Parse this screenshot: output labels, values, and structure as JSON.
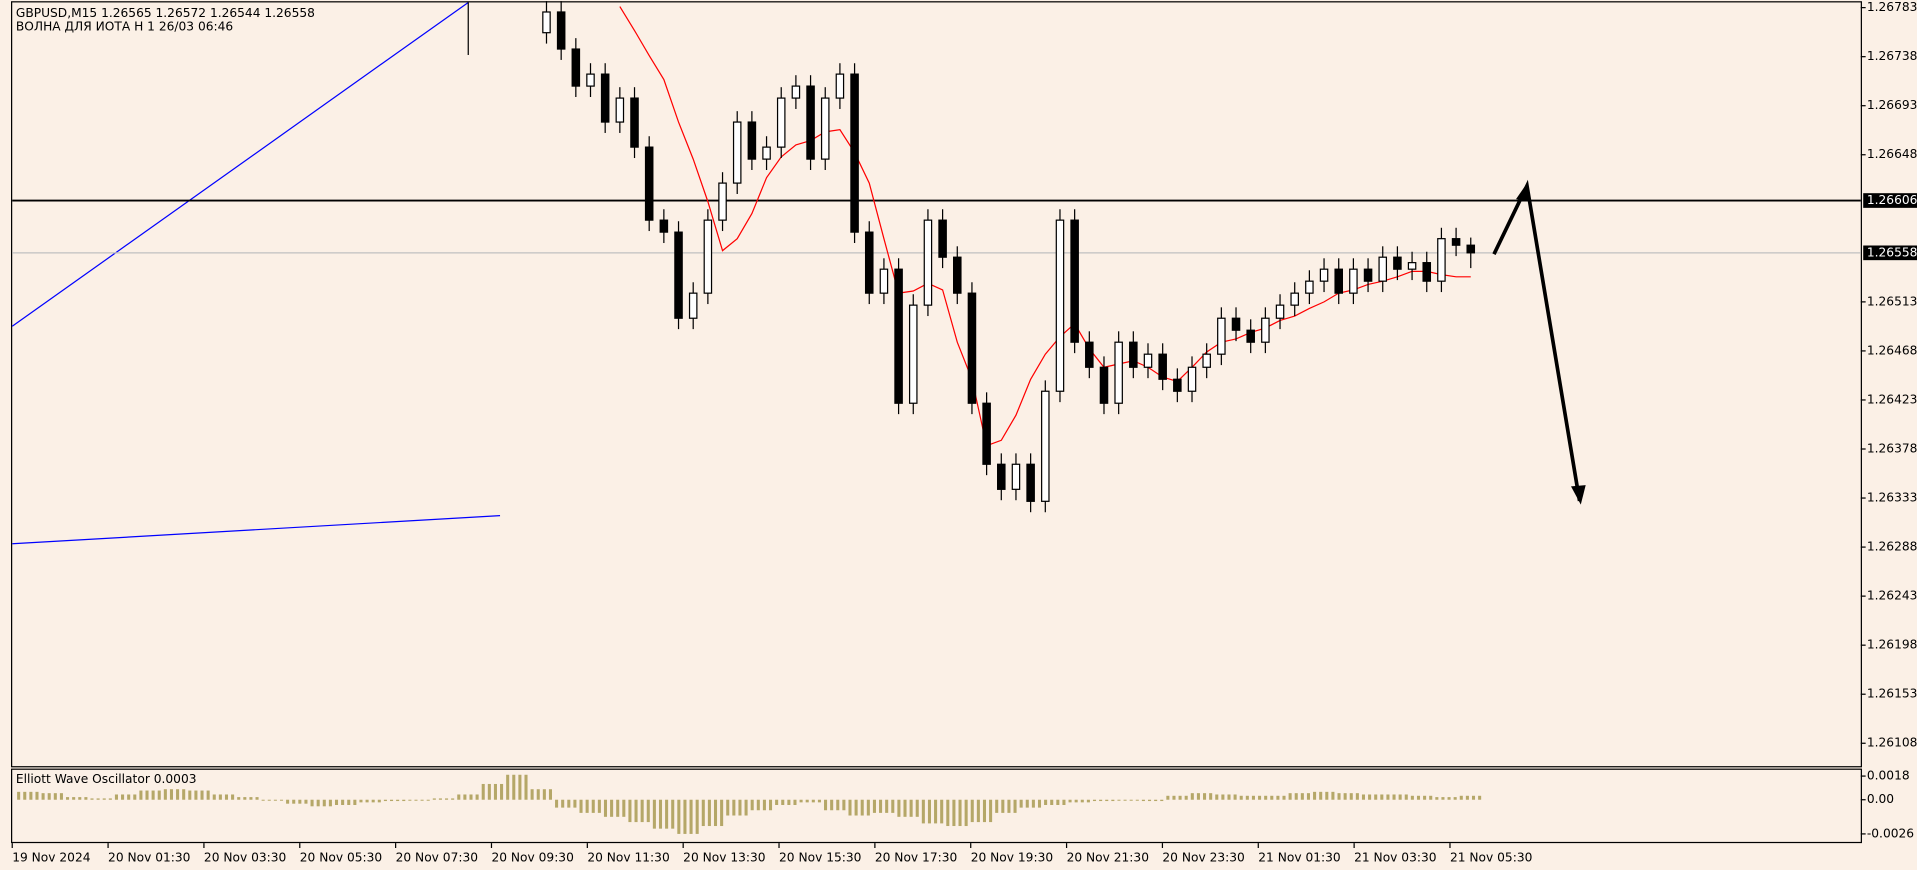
{
  "chart_data": {
    "type": "candlestick",
    "title": "GBPUSD,M15  1.26565 1.26572 1.26544 1.26558",
    "subtitle": "ВОЛНА ДЛЯ ИОТА Н 1 26/03 06:46",
    "ylim": [
      1.26087,
      1.2679
    ],
    "yticks": [
      1.26783,
      1.26738,
      1.26693,
      1.26648,
      1.26513,
      1.26468,
      1.26423,
      1.26378,
      1.26333,
      1.26288,
      1.26243,
      1.26198,
      1.26153,
      1.26108
    ],
    "hline": 1.26606,
    "bid": 1.26558,
    "xticks": [
      "19 Nov 2024",
      "20 Nov 01:30",
      "20 Nov 03:30",
      "20 Nov 05:30",
      "20 Nov 07:30",
      "20 Nov 09:30",
      "20 Nov 11:30",
      "20 Nov 13:30",
      "20 Nov 15:30",
      "20 Nov 17:30",
      "20 Nov 19:30",
      "20 Nov 21:30",
      "20 Nov 23:30",
      "21 Nov 01:30",
      "21 Nov 03:30",
      "21 Nov 05:30"
    ],
    "open": [
      1.2676,
      1.26779,
      1.26745,
      1.26711,
      1.26722,
      1.26678,
      1.267,
      1.26655,
      1.26588,
      1.26577,
      1.26498,
      1.26521,
      1.26588,
      1.26622,
      1.26678,
      1.26644,
      1.26655,
      1.267,
      1.26711,
      1.26644,
      1.267,
      1.26722,
      1.26577,
      1.26521,
      1.26543,
      1.2642,
      1.2651,
      1.26588,
      1.26554,
      1.26521,
      1.2642,
      1.26364,
      1.26341,
      1.26364,
      1.2633,
      1.26431,
      1.26588,
      1.26476,
      1.26453,
      1.2642,
      1.26476,
      1.26453,
      1.26465,
      1.26442,
      1.26431,
      1.26453,
      1.26465,
      1.26498,
      1.26487,
      1.26476,
      1.26498,
      1.2651,
      1.26521,
      1.26532,
      1.26543,
      1.26521,
      1.26543,
      1.26532,
      1.26554,
      1.26543,
      1.26549,
      1.26532,
      1.26571,
      1.26565
    ],
    "high": [
      1.26789,
      1.26789,
      1.26755,
      1.26732,
      1.26732,
      1.2671,
      1.2671,
      1.26665,
      1.26598,
      1.26587,
      1.26531,
      1.26598,
      1.26632,
      1.26688,
      1.26688,
      1.26665,
      1.2671,
      1.26721,
      1.26721,
      1.2671,
      1.26732,
      1.26732,
      1.26587,
      1.26553,
      1.26553,
      1.2652,
      1.26598,
      1.26598,
      1.26564,
      1.26531,
      1.2643,
      1.26374,
      1.26374,
      1.26374,
      1.26441,
      1.26598,
      1.26598,
      1.26486,
      1.26463,
      1.26486,
      1.26486,
      1.26475,
      1.26475,
      1.26452,
      1.26463,
      1.26475,
      1.26508,
      1.26508,
      1.26497,
      1.26508,
      1.2652,
      1.26531,
      1.26542,
      1.26553,
      1.26553,
      1.26553,
      1.26553,
      1.26564,
      1.26564,
      1.26559,
      1.26559,
      1.26581,
      1.26581,
      1.26572
    ],
    "low": [
      1.2675,
      1.26735,
      1.26701,
      1.26701,
      1.26668,
      1.26668,
      1.26645,
      1.26578,
      1.26567,
      1.26488,
      1.26488,
      1.26511,
      1.26578,
      1.26612,
      1.26634,
      1.26634,
      1.26645,
      1.2669,
      1.26634,
      1.26634,
      1.2669,
      1.26567,
      1.26511,
      1.26511,
      1.2641,
      1.2641,
      1.265,
      1.26544,
      1.26511,
      1.2641,
      1.26354,
      1.26331,
      1.26331,
      1.2632,
      1.2632,
      1.26421,
      1.26466,
      1.26443,
      1.2641,
      1.2641,
      1.26443,
      1.26443,
      1.26432,
      1.26421,
      1.26421,
      1.26443,
      1.26455,
      1.26477,
      1.26466,
      1.26466,
      1.26488,
      1.265,
      1.26511,
      1.26522,
      1.26511,
      1.26511,
      1.26522,
      1.26522,
      1.26533,
      1.26533,
      1.26522,
      1.26522,
      1.26555,
      1.26544
    ],
    "close": [
      1.26779,
      1.26745,
      1.26711,
      1.26722,
      1.26678,
      1.267,
      1.26655,
      1.26588,
      1.26577,
      1.26498,
      1.26521,
      1.26588,
      1.26622,
      1.26678,
      1.26644,
      1.26655,
      1.267,
      1.26711,
      1.26644,
      1.267,
      1.26722,
      1.26577,
      1.26521,
      1.26543,
      1.2642,
      1.2651,
      1.26588,
      1.26554,
      1.26521,
      1.2642,
      1.26364,
      1.26341,
      1.26364,
      1.2633,
      1.26431,
      1.26588,
      1.26476,
      1.26453,
      1.2642,
      1.26476,
      1.26453,
      1.26465,
      1.26442,
      1.26431,
      1.26453,
      1.26465,
      1.26498,
      1.26487,
      1.26476,
      1.26498,
      1.2651,
      1.26521,
      1.26532,
      1.26543,
      1.26521,
      1.26543,
      1.26532,
      1.26554,
      1.26543,
      1.26549,
      1.26532,
      1.26571,
      1.26565,
      1.26558
    ],
    "ma": {
      "color": "#ff0000",
      "values": [
        null,
        null,
        null,
        null,
        null,
        1.26784,
        1.26762,
        1.26739,
        1.26717,
        1.26678,
        1.26644,
        1.26605,
        1.2656,
        1.26571,
        1.26594,
        1.26627,
        1.26646,
        1.26657,
        1.26661,
        1.26669,
        1.26671,
        1.2665,
        1.26622,
        1.26571,
        1.26521,
        1.26523,
        1.2653,
        1.26524,
        1.26476,
        1.26442,
        1.26381,
        1.26386,
        1.26409,
        1.26442,
        1.26465,
        1.26481,
        1.26493,
        1.2647,
        1.26453,
        1.26456,
        1.26459,
        1.26453,
        1.26444,
        1.2644,
        1.26453,
        1.26467,
        1.26476,
        1.26479,
        1.26485,
        1.26489,
        1.26496,
        1.265,
        1.26507,
        1.26513,
        1.26521,
        1.26524,
        1.26529,
        1.26532,
        1.26536,
        1.26541,
        1.26541,
        1.26538,
        1.26536,
        1.26536
      ]
    },
    "oscillator": {
      "title": "Elliott Wave Oscillator 0.0003",
      "color": "#b5a768",
      "ylim": [
        -0.0033,
        0.00237
      ],
      "yticks": [
        0.0018,
        {
          "value": 0,
          "label": "0.00"
        },
        -0.0026
      ],
      "values": [
        0.0006,
        0.0005,
        0.0002,
        0.0001,
        0.0004,
        0.0007,
        0.0008,
        0.0007,
        0.0004,
        0.0002,
        0,
        -0.0003,
        -0.0005,
        -0.0004,
        -0.0002,
        -0.0001,
        0,
        0.0001,
        0.0004,
        0.0012,
        0.0019,
        0.0008,
        -0.0006,
        -0.001,
        -0.0013,
        -0.0017,
        -0.0022,
        -0.0026,
        -0.002,
        -0.0012,
        -0.0008,
        -0.0004,
        -0.0002,
        -0.0008,
        -0.0012,
        -0.001,
        -0.0013,
        -0.0018,
        -0.002,
        -0.0017,
        -0.001,
        -0.0006,
        -0.0004,
        -0.0002,
        -0.0001,
        0,
        -0.0001,
        0.0003,
        0.0005,
        0.0004,
        0.0003,
        0.0003,
        0.0005,
        0.0006,
        0.0005,
        0.0004,
        0.0004,
        0.0003,
        0.0002,
        0.0003
      ]
    }
  }
}
